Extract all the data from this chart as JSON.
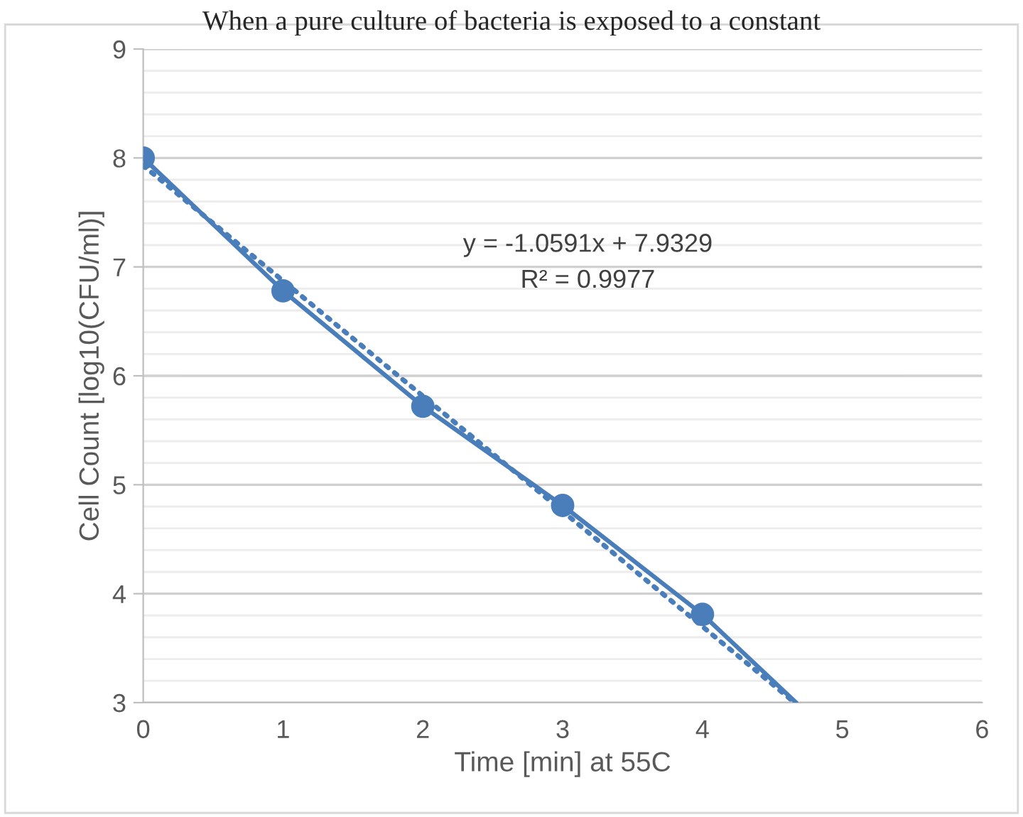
{
  "chart_data": {
    "type": "scatter",
    "title": "When a pure culture of bacteria is exposed to a constant",
    "xlabel": "Time [min] at 55C",
    "ylabel": "Cell Count [log10(CFU/ml)]",
    "xlim": [
      0,
      6
    ],
    "xticks": [
      0,
      1,
      2,
      3,
      4,
      5,
      6
    ],
    "ylim": [
      3,
      9
    ],
    "yticks": [
      3,
      4,
      5,
      6,
      7,
      8,
      9
    ],
    "grid": "y",
    "legend": false,
    "series": [
      {
        "type": "line",
        "color": "#4a7ebb",
        "x": [
          0,
          1,
          2,
          3,
          4,
          4.67
        ],
        "values": [
          8.0,
          6.78,
          5.72,
          4.81,
          3.81,
          3.0
        ],
        "marker": "none",
        "line_style": "solid"
      },
      {
        "color": "#4a7ebb",
        "x": [
          0,
          1,
          2,
          3,
          4
        ],
        "values": [
          8.0,
          6.78,
          5.72,
          4.81,
          3.81
        ],
        "marker": "circle"
      },
      {
        "type": "line",
        "color": "#4a7ebb",
        "x": [
          0,
          4.66
        ],
        "values": [
          7.93,
          3.0
        ],
        "marker": "none",
        "line_style": "dotted"
      }
    ],
    "annotations": [
      "y = -1.0591x + 7.9329",
      "R² = 0.9977"
    ]
  }
}
